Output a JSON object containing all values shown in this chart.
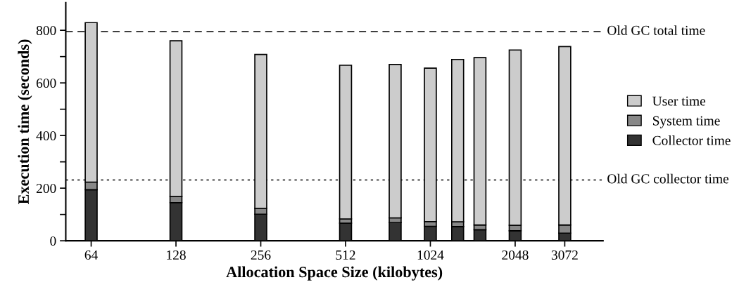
{
  "chart_data": {
    "type": "bar",
    "stacked": true,
    "xlabel": "Allocation Space Size (kilobytes)",
    "ylabel": "Execution time (seconds)",
    "x": [
      64,
      128,
      256,
      512,
      768,
      1024,
      1280,
      1536,
      2048,
      3072
    ],
    "log": "x",
    "xlim": [
      52,
      4200
    ],
    "xticks": [
      64,
      128,
      256,
      512,
      1024,
      2048,
      3072
    ],
    "ylim": [
      0,
      905
    ],
    "yticks": [
      0,
      {
        "value": 100,
        "label": null
      },
      200,
      {
        "value": 300,
        "label": null
      },
      400,
      {
        "value": 500,
        "label": null
      },
      600,
      {
        "value": 700,
        "label": null
      },
      800
    ],
    "series": [
      {
        "name": "Collector time",
        "color": "#333333",
        "values": [
          194,
          145,
          101,
          67,
          69,
          55,
          54,
          42,
          38,
          29
        ]
      },
      {
        "name": "System time",
        "color": "#888888",
        "values": [
          29,
          23,
          22,
          16,
          18,
          18,
          18,
          18,
          21,
          31
        ]
      },
      {
        "name": "User time",
        "color": "#cccccc",
        "values": [
          606,
          592,
          585,
          584,
          583,
          583,
          617,
          636,
          666,
          678
        ]
      }
    ],
    "ref_lines": [
      {
        "axis": "y",
        "value": 795,
        "label": "Old GC total time",
        "line_style": "dashed"
      },
      {
        "axis": "y",
        "value": 231,
        "label": "Old GC collector time",
        "line_style": "dotted"
      }
    ],
    "legend": "right",
    "grid": false
  }
}
